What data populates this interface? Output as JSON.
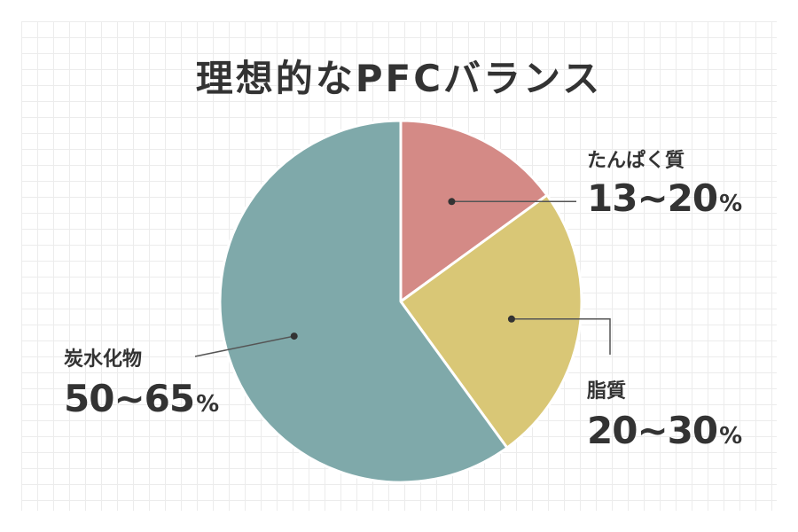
{
  "chart_data": {
    "type": "pie",
    "title": "理想的なPFCバランス",
    "slices": [
      {
        "label": "たんぱく質",
        "range": "13~20",
        "unit": "%",
        "value": 15,
        "color": "#d48a86"
      },
      {
        "label": "脂質",
        "range": "20~30",
        "unit": "%",
        "value": 25,
        "color": "#d9c776"
      },
      {
        "label": "炭水化物",
        "range": "50~65",
        "unit": "%",
        "value": 60,
        "color": "#7fa9aa"
      }
    ]
  }
}
